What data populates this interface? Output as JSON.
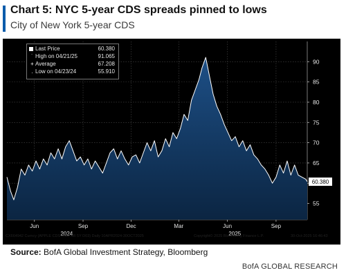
{
  "header": {
    "title": "Chart 5: NYC 5-year CDS spreads pinned to lows",
    "subtitle": "City of New York 5-year CDS"
  },
  "chart_data": {
    "type": "area",
    "title": "Chart 5: NYC 5-year CDS spreads pinned to lows",
    "subtitle": "City of New York 5-year CDS",
    "x_range": [
      "2024-04-10",
      "2025-10-30"
    ],
    "ylim": [
      51,
      95
    ],
    "y_ticks": [
      55,
      60,
      65,
      70,
      75,
      80,
      85,
      90
    ],
    "x_ticks": [
      {
        "label": "Jun",
        "date": "2024-06-01"
      },
      {
        "label": "Sep",
        "date": "2024-09-01"
      },
      {
        "label": "Dec",
        "date": "2024-12-01"
      },
      {
        "label": "Mar",
        "date": "2025-03-01"
      },
      {
        "label": "Jun",
        "date": "2025-06-01"
      },
      {
        "label": "Sep",
        "date": "2025-09-01"
      }
    ],
    "year_labels": [
      {
        "label": "2024",
        "date": "2024-08-01"
      },
      {
        "label": "2025",
        "date": "2025-06-15"
      }
    ],
    "legend": [
      {
        "label": "Last Price",
        "value": "60.380"
      },
      {
        "label": "High on 04/21/25",
        "value": "91.065"
      },
      {
        "label": "Average",
        "value": "67.208"
      },
      {
        "label": "Low on 04/23/24",
        "value": "55.910"
      }
    ],
    "last_value_label": "60.380",
    "grid": true,
    "series": [
      {
        "points": [
          [
            "2024-04-10",
            61.5
          ],
          [
            "2024-04-17",
            58.0
          ],
          [
            "2024-04-23",
            55.9
          ],
          [
            "2024-04-30",
            59.0
          ],
          [
            "2024-05-07",
            63.5
          ],
          [
            "2024-05-14",
            62.0
          ],
          [
            "2024-05-21",
            64.5
          ],
          [
            "2024-05-28",
            63.0
          ],
          [
            "2024-06-04",
            65.5
          ],
          [
            "2024-06-11",
            63.5
          ],
          [
            "2024-06-18",
            66.0
          ],
          [
            "2024-06-25",
            64.5
          ],
          [
            "2024-07-02",
            67.5
          ],
          [
            "2024-07-09",
            66.0
          ],
          [
            "2024-07-16",
            68.5
          ],
          [
            "2024-07-23",
            66.0
          ],
          [
            "2024-07-30",
            69.0
          ],
          [
            "2024-08-06",
            70.5
          ],
          [
            "2024-08-13",
            68.0
          ],
          [
            "2024-08-20",
            65.5
          ],
          [
            "2024-08-27",
            66.5
          ],
          [
            "2024-09-03",
            64.5
          ],
          [
            "2024-09-10",
            66.0
          ],
          [
            "2024-09-17",
            63.5
          ],
          [
            "2024-09-24",
            65.5
          ],
          [
            "2024-10-01",
            64.0
          ],
          [
            "2024-10-08",
            62.5
          ],
          [
            "2024-10-15",
            65.0
          ],
          [
            "2024-10-22",
            67.5
          ],
          [
            "2024-10-29",
            68.5
          ],
          [
            "2024-11-05",
            66.0
          ],
          [
            "2024-11-12",
            68.0
          ],
          [
            "2024-11-19",
            66.0
          ],
          [
            "2024-11-26",
            64.5
          ],
          [
            "2024-12-03",
            66.5
          ],
          [
            "2024-12-10",
            67.0
          ],
          [
            "2024-12-17",
            65.0
          ],
          [
            "2024-12-24",
            67.5
          ],
          [
            "2024-12-31",
            70.0
          ],
          [
            "2025-01-07",
            68.0
          ],
          [
            "2025-01-14",
            70.5
          ],
          [
            "2025-01-21",
            66.5
          ],
          [
            "2025-01-28",
            68.0
          ],
          [
            "2025-02-04",
            71.0
          ],
          [
            "2025-02-11",
            69.0
          ],
          [
            "2025-02-18",
            72.5
          ],
          [
            "2025-02-25",
            71.0
          ],
          [
            "2025-03-04",
            73.5
          ],
          [
            "2025-03-11",
            77.0
          ],
          [
            "2025-03-18",
            75.5
          ],
          [
            "2025-03-25",
            80.5
          ],
          [
            "2025-04-01",
            83.0
          ],
          [
            "2025-04-08",
            85.5
          ],
          [
            "2025-04-14",
            88.5
          ],
          [
            "2025-04-21",
            91.065
          ],
          [
            "2025-04-28",
            86.5
          ],
          [
            "2025-05-05",
            82.0
          ],
          [
            "2025-05-12",
            79.0
          ],
          [
            "2025-05-19",
            77.0
          ],
          [
            "2025-05-26",
            74.5
          ],
          [
            "2025-06-02",
            72.5
          ],
          [
            "2025-06-09",
            70.5
          ],
          [
            "2025-06-16",
            71.5
          ],
          [
            "2025-06-23",
            69.0
          ],
          [
            "2025-06-30",
            70.5
          ],
          [
            "2025-07-07",
            68.0
          ],
          [
            "2025-07-14",
            69.5
          ],
          [
            "2025-07-21",
            67.0
          ],
          [
            "2025-07-28",
            66.0
          ],
          [
            "2025-08-04",
            64.5
          ],
          [
            "2025-08-11",
            63.5
          ],
          [
            "2025-08-18",
            62.0
          ],
          [
            "2025-08-25",
            60.0
          ],
          [
            "2025-09-01",
            61.5
          ],
          [
            "2025-09-08",
            64.5
          ],
          [
            "2025-09-15",
            62.5
          ],
          [
            "2025-09-22",
            65.5
          ],
          [
            "2025-09-29",
            62.0
          ],
          [
            "2025-10-06",
            64.5
          ],
          [
            "2025-10-13",
            62.0
          ],
          [
            "2025-10-20",
            61.5
          ],
          [
            "2025-10-27",
            61.0
          ],
          [
            "2025-10-30",
            60.38
          ]
        ]
      }
    ]
  },
  "footer": {
    "ticker": "CX664942 Curncy (APPLE CDS USD SR 5Y D03) Daily 10APR2024-30OCT2025",
    "copyright": "Copyright© 2025 Bloomberg Finance L.P.",
    "timestamp": "30-Oct-2025 16:46:43"
  },
  "source": {
    "label": "Source:",
    "text": " BofA Global Investment Strategy, Bloomberg"
  },
  "brand": "BofA GLOBAL RESEARCH",
  "colors": {
    "accent": "#0b5cab",
    "panel": "#000000",
    "area_fill_top": "#1d4f86",
    "area_fill_bottom": "#0b2542",
    "line": "#ffffff",
    "grid": "#4a4a4a"
  }
}
